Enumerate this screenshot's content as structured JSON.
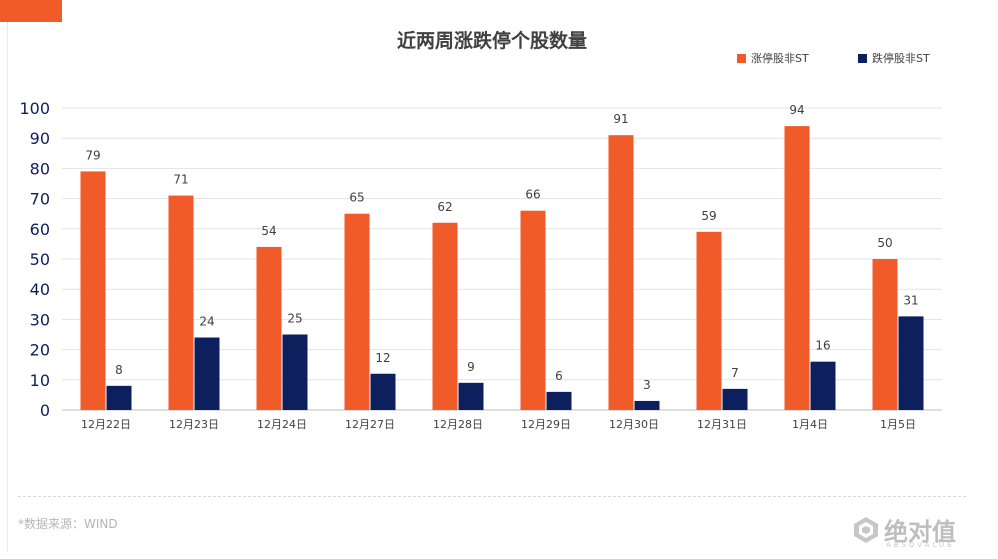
{
  "chart_data": {
    "type": "bar",
    "title": "近两周涨跌停个股数量",
    "categories": [
      "12月22日",
      "12月23日",
      "12月24日",
      "12月27日",
      "12月28日",
      "12月29日",
      "12月30日",
      "12月31日",
      "1月4日",
      "1月5日"
    ],
    "series": [
      {
        "name": "涨停股非ST",
        "color": "#f15a29",
        "values": [
          79,
          71,
          54,
          65,
          62,
          66,
          91,
          59,
          94,
          50
        ]
      },
      {
        "name": "跌停股非ST",
        "color": "#0d1f5c",
        "values": [
          8,
          24,
          25,
          12,
          9,
          6,
          3,
          7,
          16,
          31
        ]
      }
    ],
    "ylim": [
      0,
      100
    ],
    "yticks": [
      0,
      10,
      20,
      30,
      40,
      50,
      60,
      70,
      80,
      90,
      100
    ],
    "grid": true,
    "legend": "top-right",
    "data_labels": true
  },
  "footer": {
    "source": "*数据来源：WIND"
  },
  "watermark": {
    "text": "绝对值",
    "sub": "ABSOVALUE"
  }
}
